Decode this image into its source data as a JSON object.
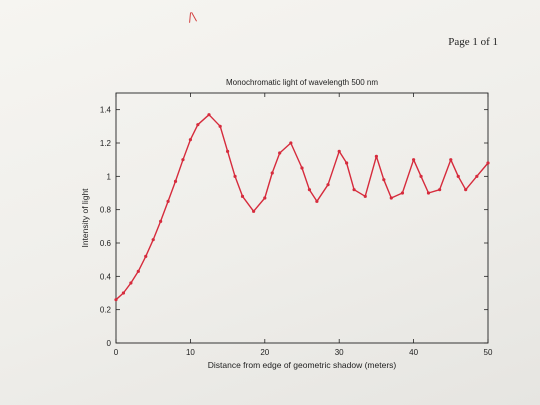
{
  "page": {
    "page_label": "Page 1 of 1",
    "pen_mark": "/\\"
  },
  "chart_data": {
    "type": "line",
    "title": "Monochromatic light of wavelength 500 nm",
    "xlabel": "Distance from edge of geometric shadow (meters)",
    "ylabel": "Intensity of light",
    "xlim": [
      0,
      50
    ],
    "ylim": [
      0,
      1.5
    ],
    "grid": false,
    "line_color": "#d62b3c",
    "x_ticks": [
      0,
      10,
      20,
      30,
      40,
      50
    ],
    "y_ticks": [
      0,
      0.2,
      0.4,
      0.6,
      0.8,
      1,
      1.2,
      1.4
    ],
    "x_tick_labels": [
      "0",
      "10",
      "20",
      "30",
      "40",
      "50"
    ],
    "y_tick_labels": [
      "0",
      "0.2",
      "0.4",
      "0.6",
      "0.8",
      "1",
      "1.2",
      "1.4"
    ],
    "series": [
      {
        "x": [
          0,
          1,
          2,
          3,
          4,
          5,
          6,
          7,
          8,
          9,
          10,
          11,
          12.5,
          14,
          15,
          16,
          17,
          18.5,
          20,
          21,
          22,
          23.5,
          25,
          26,
          27,
          28.5,
          30,
          31,
          32,
          33.5,
          35,
          36,
          37,
          38.5,
          40,
          41,
          42,
          43.5,
          45,
          46,
          47,
          48.5,
          50
        ],
        "y": [
          0.26,
          0.3,
          0.36,
          0.43,
          0.52,
          0.62,
          0.73,
          0.85,
          0.97,
          1.1,
          1.22,
          1.31,
          1.37,
          1.3,
          1.15,
          1.0,
          0.88,
          0.79,
          0.87,
          1.02,
          1.14,
          1.2,
          1.05,
          0.92,
          0.85,
          0.95,
          1.15,
          1.08,
          0.92,
          0.88,
          1.12,
          0.98,
          0.87,
          0.9,
          1.1,
          1.0,
          0.9,
          0.92,
          1.1,
          1.0,
          0.92,
          1.0,
          1.08
        ]
      }
    ]
  }
}
